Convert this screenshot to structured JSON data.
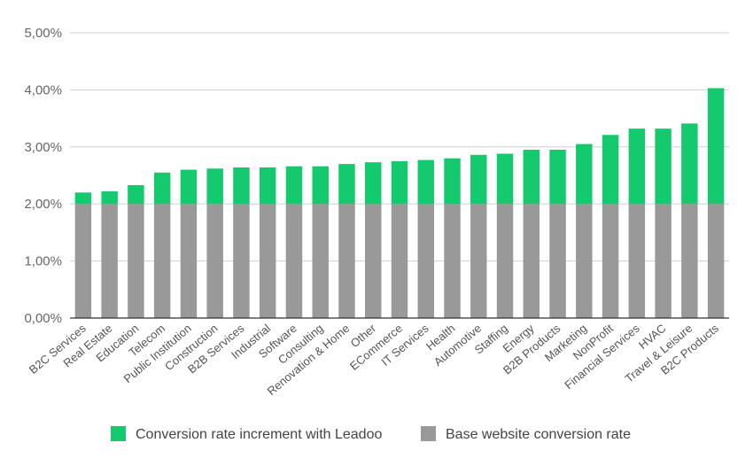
{
  "chart_data": {
    "type": "bar",
    "stacked": true,
    "categories": [
      "B2C Services",
      "Real Estate",
      "Education",
      "Telecom",
      "Public Institution",
      "Construction",
      "B2B Services",
      "Industrial",
      "Software",
      "Consulting",
      "Renovation & Home",
      "Other",
      "ECommerce",
      "IT Services",
      "Health",
      "Automotive",
      "Staffing",
      "Energy",
      "B2B Products",
      "Marketing",
      "NonProfit",
      "Financial Services",
      "HVAC",
      "Travel & Leisure",
      "B2C Products"
    ],
    "series": [
      {
        "name": "Base website conversion rate",
        "color": "#999999",
        "values": [
          2,
          2,
          2,
          2,
          2,
          2,
          2,
          2,
          2,
          2,
          2,
          2,
          2,
          2,
          2,
          2,
          2,
          2,
          2,
          2,
          2,
          2,
          2,
          2,
          2
        ]
      },
      {
        "name": "Conversion rate increment with Leadoo",
        "color": "#14c96e",
        "values": [
          0.2,
          0.22,
          0.33,
          0.55,
          0.6,
          0.62,
          0.64,
          0.64,
          0.66,
          0.66,
          0.7,
          0.73,
          0.75,
          0.77,
          0.8,
          0.86,
          0.88,
          0.95,
          0.95,
          1.05,
          1.21,
          1.32,
          1.32,
          1.41,
          2.03
        ]
      }
    ],
    "legend": [
      {
        "name": "Conversion rate increment with Leadoo",
        "color": "#14c96e"
      },
      {
        "name": "Base website conversion rate",
        "color": "#999999"
      }
    ],
    "yticks": [
      "0,00%",
      "1,00%",
      "2,00%",
      "3,00%",
      "4,00%",
      "5,00%"
    ],
    "ylim": [
      0,
      5
    ],
    "grid": true,
    "legend_position": "bottom"
  }
}
